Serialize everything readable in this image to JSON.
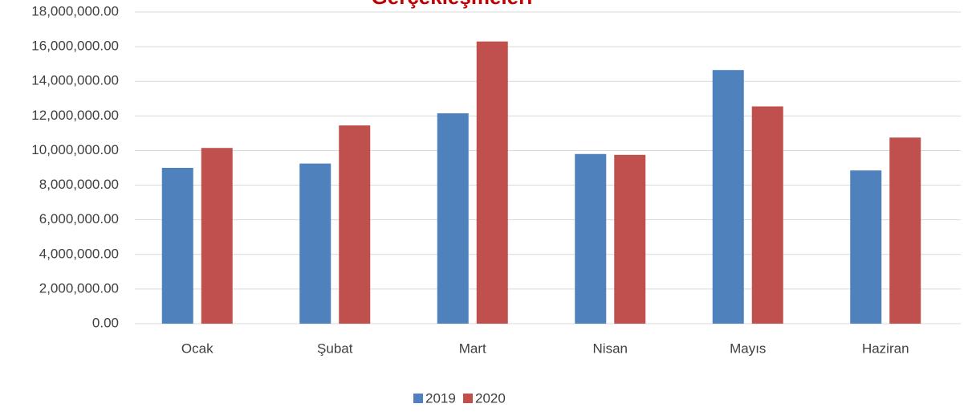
{
  "chart_data": {
    "type": "bar",
    "title": "Gerçekleşmeleri",
    "categories": [
      "Ocak",
      "Şubat",
      "Mart",
      "Nisan",
      "Mayıs",
      "Haziran"
    ],
    "series": [
      {
        "name": "2019",
        "color": "#4f81bd",
        "values": [
          9000000,
          9250000,
          12150000,
          9800000,
          14650000,
          8850000
        ]
      },
      {
        "name": "2020",
        "color": "#c0504d",
        "values": [
          10150000,
          11450000,
          16300000,
          9750000,
          12550000,
          10750000
        ]
      }
    ],
    "ylim": [
      0,
      18000000
    ],
    "yticks": [
      {
        "value": 0,
        "label": "0.00"
      },
      {
        "value": 2000000,
        "label": "2,000,000.00"
      },
      {
        "value": 4000000,
        "label": "4,000,000.00"
      },
      {
        "value": 6000000,
        "label": "6,000,000.00"
      },
      {
        "value": 8000000,
        "label": "8,000,000.00"
      },
      {
        "value": 10000000,
        "label": "10,000,000.00"
      },
      {
        "value": 12000000,
        "label": "12,000,000.00"
      },
      {
        "value": 14000000,
        "label": "14,000,000.00"
      },
      {
        "value": 16000000,
        "label": "16,000,000.00"
      },
      {
        "value": 18000000,
        "label": "18,000,000.00"
      }
    ],
    "grid": true,
    "legend": "bottom"
  }
}
